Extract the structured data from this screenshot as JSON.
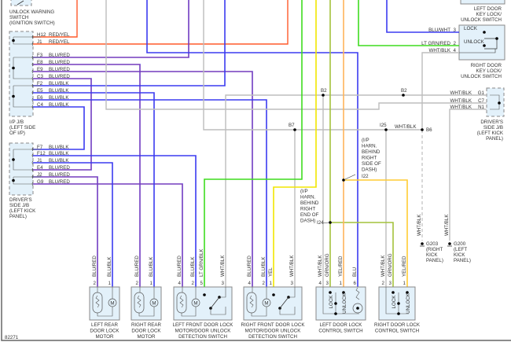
{
  "diagram_id": "82271",
  "colors": {
    "blue": "#3b3bf0",
    "red_stripe": "#e8405a",
    "red_yel": "#ff5a2a",
    "grey": "#bdbdbd",
    "lt_green": "#3fdc1f",
    "yellow": "#f2e600",
    "grn_org": "#a4c23c",
    "orange": "#ffb45a",
    "box_fill": "#e3f1fa",
    "box_stroke": "#888888"
  },
  "labels": {
    "unlock_warning_switch": [
      "UNLOCK WARNING",
      "SWITCH",
      "(IGNITION SWITCH)"
    ],
    "ip_jb": [
      "I/P J/B",
      "(LEFT SIDE",
      "OF I/P)"
    ],
    "drivers_jb_left": [
      "DRIVER'S",
      "SIDE J/B",
      "(LEFT KICK",
      "PANEL)"
    ],
    "left_door_key": [
      "LEFT DOOR",
      "KEY LOCK/",
      "UNLOCK SWITCH"
    ],
    "right_door_key": [
      "RIGHT DOOR",
      "KEY LOCK/",
      "UNLOCK SWITCH"
    ],
    "drivers_jb_right": [
      "DRIVER'S",
      "SIDE J/B",
      "(LEFT KICK",
      "PANEL)"
    ],
    "harn_right_side": [
      "(I/P",
      "HARN.",
      "BEHIND",
      "RIGHT",
      "SIDE OF",
      "DASH)"
    ],
    "harn_right_end": [
      "(I/P",
      "HARN.",
      "BEHIND",
      "RIGHT",
      "END OF",
      "DASH)"
    ],
    "g203": [
      "G203",
      "(RIGHT",
      "KICK",
      "PANEL)"
    ],
    "g200": [
      "G200",
      "(LEFT",
      "KICK",
      "PANEL)"
    ]
  },
  "ip_jb_pins": [
    {
      "pin": "H12",
      "wire": "RED/YEL"
    },
    {
      "pin": "J1",
      "wire": "RED/YEL"
    },
    {
      "pin": "F3",
      "wire": "BLU/RED"
    },
    {
      "pin": "E8",
      "wire": "BLU/RED"
    },
    {
      "pin": "E9",
      "wire": "BLU/RED"
    },
    {
      "pin": "C3",
      "wire": "BLU/RED"
    },
    {
      "pin": "F2",
      "wire": "BLU/BLK"
    },
    {
      "pin": "E5",
      "wire": "BLU/BLK"
    },
    {
      "pin": "E6",
      "wire": "BLU/BLK"
    },
    {
      "pin": "C4",
      "wire": "BLU/BLK"
    }
  ],
  "drivers_jb_left_pins": [
    {
      "pin": "F7",
      "wire": "BLU/BLK"
    },
    {
      "pin": "F12",
      "wire": "BLU/BLK"
    },
    {
      "pin": "J1",
      "wire": "BLU/BLK"
    },
    {
      "pin": "E4",
      "wire": "BLU/RED"
    },
    {
      "pin": "J2",
      "wire": "BLU/RED"
    },
    {
      "pin": "G9",
      "wire": "BLU/RED"
    }
  ],
  "right_door_key_pins": [
    {
      "pin": "3",
      "wire": "BLU/WHT",
      "contact": "LOCK"
    },
    {
      "pin": "2",
      "wire": "LT GRN/RED",
      "contact": "UNLOCK"
    },
    {
      "pin": "4",
      "wire": "WHT/BLK",
      "contact": ""
    }
  ],
  "drivers_jb_right_pins": [
    {
      "pin": "G1",
      "wire": "WHT/BLK"
    },
    {
      "pin": "C7",
      "wire": "WHT/BLK"
    },
    {
      "pin": "N1",
      "wire": "WHT/BLK"
    }
  ],
  "splices": {
    "b2a": "B2",
    "b2b": "B2",
    "b7": "B7",
    "i25": "I25",
    "b6": "B6",
    "i22": "I22",
    "i24": "I24",
    "i25_wire": "WHT/BLK",
    "g203_wire": "WHT/BLK",
    "g200_wire": "WHT/BLK"
  },
  "bottom_components": [
    {
      "name": [
        "LEFT REAR",
        "DOOR LOCK",
        "MOTOR"
      ],
      "pins": [
        {
          "pin": "2",
          "wire": "BLU/RED"
        },
        {
          "pin": "1",
          "wire": "BLU/BLK"
        }
      ]
    },
    {
      "name": [
        "RIGHT REAR",
        "DOOR LOCK",
        "MOTOR"
      ],
      "pins": [
        {
          "pin": "2",
          "wire": "BLU/RED"
        },
        {
          "pin": "1",
          "wire": "BLU/BLK"
        }
      ]
    },
    {
      "name": [
        "LEFT FRONT DOOR LOCK",
        "MOTOR/DOOR UNLOCK",
        "DETECTION SWITCH"
      ],
      "pins": [
        {
          "pin": "4",
          "wire": "BLU/RED"
        },
        {
          "pin": "2",
          "wire": "BLU/BLK"
        },
        {
          "pin": "5",
          "wire": "LT GRN/BLK"
        },
        {
          "pin": "3",
          "wire": "WHT/BLK"
        }
      ]
    },
    {
      "name": [
        "RIGHT FRONT DOOR LOCK",
        "MOTOR/DOOR UNLOCK",
        "DETECTION SWITCH"
      ],
      "pins": [
        {
          "pin": "4",
          "wire": "BLU/RED"
        },
        {
          "pin": "2",
          "wire": "BLU/BLK"
        },
        {
          "pin": "1",
          "wire": "YEL"
        },
        {
          "pin": "3",
          "wire": "WHT/BLK"
        }
      ]
    },
    {
      "name": [
        "LEFT DOOR LOCK",
        "CONTROL SWITCH"
      ],
      "pins": [
        {
          "pin": "4",
          "wire": "WHT/BLK"
        },
        {
          "pin": "3",
          "wire": "GRN/ORG"
        },
        {
          "pin": "1",
          "wire": "YEL/RED"
        },
        {
          "pin": "6",
          "wire": "BLU"
        }
      ],
      "contacts": [
        "LOCK",
        "UNLOCK"
      ]
    },
    {
      "name": [
        "RIGHT DOOR LOCK",
        "CONTROL SWITCH"
      ],
      "pins": [
        {
          "pin": "2",
          "wire": "WHT/BLK"
        },
        {
          "pin": "3",
          "wire": "GRN/ORG"
        },
        {
          "pin": "1",
          "wire": "YEL/RED"
        }
      ],
      "contacts": [
        "LOCK",
        "UNLOCK"
      ]
    }
  ]
}
